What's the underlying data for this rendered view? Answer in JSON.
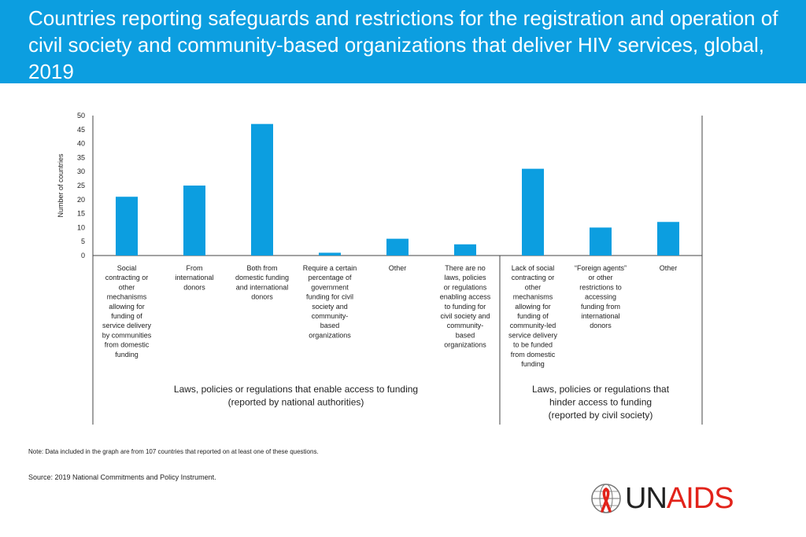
{
  "header": {
    "title": "Countries reporting safeguards and restrictions for the registration and operation of civil society and community-based organizations that deliver HIV services, global, 2019"
  },
  "chart_data": {
    "type": "bar",
    "ylabel": "Number of countries",
    "ylim": [
      0,
      50
    ],
    "yticks": [
      0,
      5,
      10,
      15,
      20,
      25,
      30,
      35,
      40,
      45,
      50
    ],
    "categories": [
      [
        "Social",
        "contracting or",
        "other",
        "mechanisms",
        "allowing for",
        "funding of",
        "service delivery",
        "by communities",
        "from domestic",
        "funding"
      ],
      [
        "From",
        "international",
        "donors"
      ],
      [
        "Both from",
        "domestic funding",
        "and international",
        "donors"
      ],
      [
        "Require a certain",
        "percentage of",
        "government",
        "funding for civil",
        "society  and",
        "community-",
        "based",
        "organizations"
      ],
      [
        "Other"
      ],
      [
        "There are no",
        "laws, policies",
        "or regulations",
        "enabling access",
        "to funding for",
        "civil society and",
        "community-",
        "based",
        "organizations"
      ],
      [
        "Lack of social",
        "contracting or",
        "other",
        "mechanisms",
        "allowing for",
        "funding  of",
        "community-led",
        "service delivery",
        "to be funded",
        "from domestic",
        "funding"
      ],
      [
        "“Foreign agents”",
        "or other",
        "restrictions to",
        "accessing",
        "funding  from",
        "international",
        "donors"
      ],
      [
        "Other"
      ]
    ],
    "values": [
      21,
      25,
      47,
      1,
      6,
      4,
      31,
      10,
      12
    ],
    "groups": [
      {
        "lines": [
          "Laws, policies or regulations that enable access to funding",
          "(reported by national authorities)"
        ]
      },
      {
        "lines": [
          "Laws, policies or regulations that",
          "hinder access to funding",
          "(reported by civil society)"
        ]
      }
    ],
    "bar_color": "#0c9ee0",
    "grid": false
  },
  "footer": {
    "note": "Note: Data included in the graph are from 107 countries that reported on at least one of these questions.",
    "source": "Source: 2019 National Commitments and Policy Instrument."
  },
  "logo": {
    "un_text": "UN",
    "aids_text": "AIDS",
    "icon": "ribbon-emblem-icon"
  }
}
